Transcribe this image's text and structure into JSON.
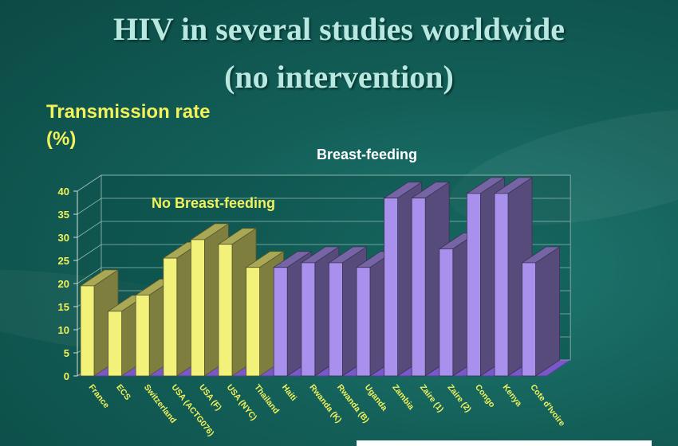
{
  "slide": {
    "title_line1": "HIV in several studies worldwide",
    "title_line2": "(no intervention)"
  },
  "colors": {
    "no_breastfeeding": "#f2f27a",
    "breastfeeding": "#a890ec",
    "background": "#135f58",
    "axis_text": "#f2f25a"
  },
  "chart_data": {
    "type": "bar",
    "ylabel": "Transmission rate (%)",
    "ylim": [
      0,
      40
    ],
    "yticks": [
      0,
      5,
      10,
      15,
      20,
      25,
      30,
      35,
      40
    ],
    "grid": true,
    "style": "3d-columns",
    "categories": [
      "France",
      "ECS",
      "Switzerland",
      "USA (ACTG076)",
      "USA (F)",
      "USA (NYC)",
      "Thailand",
      "Haiti",
      "Rwanda (K)",
      "Rwanda (B)",
      "Uganda",
      "Zambia",
      "Zaire (1)",
      "Zaire (2)",
      "Congo",
      "Kenya",
      "Cote d'Ivoire"
    ],
    "values": [
      19.5,
      14,
      17.5,
      25.5,
      29.5,
      28.5,
      23.5,
      23.5,
      24.5,
      24.5,
      23.5,
      38.5,
      38.5,
      27.5,
      39.5,
      39.5,
      24.5
    ],
    "groups": [
      {
        "name": "No Breast-feeding",
        "start": 0,
        "end": 6,
        "color": "#f2f27a"
      },
      {
        "name": "Breast-feeding",
        "start": 7,
        "end": 16,
        "color": "#a890ec"
      }
    ]
  }
}
